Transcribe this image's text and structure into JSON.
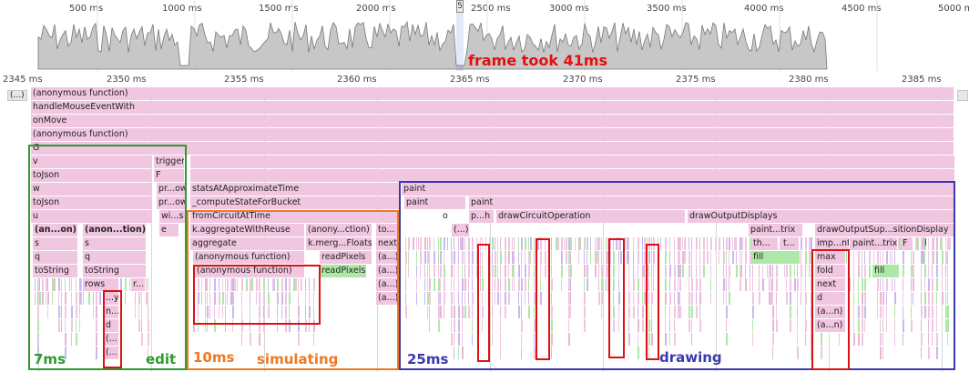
{
  "overview": {
    "ticks": [
      "500 ms",
      "1000 ms",
      "1500 ms",
      "2000 ms",
      "2500 ms",
      "3000 ms",
      "3500 ms",
      "4000 ms",
      "4500 ms",
      "5000 ms"
    ],
    "selection_marker": "5"
  },
  "detail_ruler": {
    "ticks": [
      "2345 ms",
      "2350 ms",
      "2355 ms",
      "2360 ms",
      "2365 ms",
      "2370 ms",
      "2375 ms",
      "2380 ms",
      "2385 ms"
    ]
  },
  "flame": {
    "collapsed_left": "(...)",
    "top_rows": [
      "(anonymous function)",
      "handleMouseEventWith",
      "onMove",
      "(anonymous function)",
      "G",
      "v"
    ],
    "labels": {
      "trigger": "trigger",
      "F": "F",
      "toJson": "toJson",
      "w": "w",
      "u": "u",
      "anon_on": "(an...on)",
      "anon_tion": "(anon...tion)",
      "s": "s",
      "q": "q",
      "toString": "toString",
      "rows": "rows",
      "r": "r...",
      "y": "...y",
      "n": "n...",
      "d": "d",
      "paren1": "(...)",
      "paren2": "(...)",
      "pr_ow1": "pr...ow",
      "pr_ow2": "pr...ow",
      "wi_s": "wi...s",
      "e": "e",
      "statsAtApproximateTime": "statsAtApproximateTime",
      "computeStateForBucket": "_computeStateForBucket",
      "fromCircuitAtTime": "fromCircuitAtTime",
      "aggregateWithReuse": "k.aggregateWithReuse",
      "anony_ction": "(anony...ction)",
      "to": "to...",
      "aggregate": "aggregate",
      "kmergeFloats": "k.merg...Floats",
      "next": "next",
      "anonymous_function": "(anonymous function)",
      "readPixels": "readPixels",
      "a1": "(a...)",
      "a2": "(a...)",
      "a3": "(a...)",
      "paint": "paint",
      "paint2": "paint",
      "paint3": "paint",
      "o": "o",
      "p_h": "p...h",
      "drawCircuitOperation": "drawCircuitOperation",
      "drawOutputDisplays": "drawOutputDisplays",
      "paren3": "(...)",
      "paint_trix": "paint...trix",
      "drawOutputSup": "drawOutputSup...sitionDisplay",
      "th": "th...",
      "t": "t...",
      "imp_nt": "imp...nt",
      "paint_trix2": "paint...trix",
      "F2": "F",
      "l": "l",
      "fill": "fill",
      "max": "max",
      "fold": "fold",
      "fill2": "fill",
      "next2": "next",
      "d2": "d",
      "an1": "(a...n)",
      "an2": "(a...n)"
    }
  },
  "annotations": {
    "frame": "frame took 41ms",
    "edit_time": "7ms",
    "edit": "edit",
    "sim_time": "10ms",
    "sim": "simulating",
    "draw_time": "25ms",
    "draw": "drawing"
  },
  "colors": {
    "flame_pink": "#f0c6e0",
    "flame_green": "#aee8a8",
    "edit_green": "#2e9a2e",
    "sim_orange": "#f07820",
    "draw_blue": "#3a3ab0",
    "highlight_red": "#dd1111",
    "frame_red": "#e01010"
  }
}
